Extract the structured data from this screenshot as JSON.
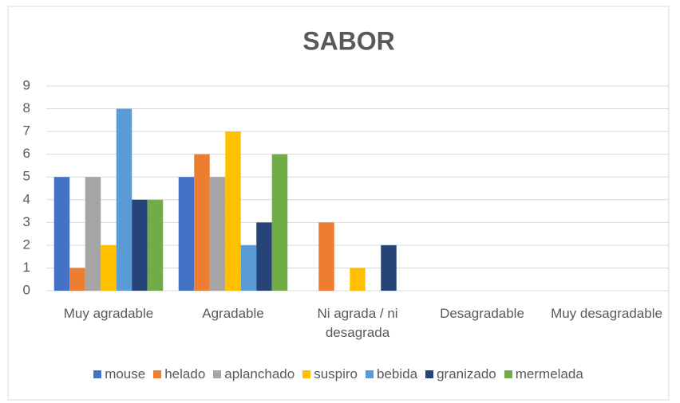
{
  "chart_data": {
    "type": "bar",
    "title": "SABOR",
    "categories": [
      "Muy agradable",
      "Agradable",
      "Ni agrada / ni desagrada",
      "Desagradable",
      "Muy desagradable"
    ],
    "series": [
      {
        "name": "mouse",
        "color": "#4472c4",
        "values": [
          5,
          5,
          0,
          0,
          0
        ]
      },
      {
        "name": "helado",
        "color": "#ed7d31",
        "values": [
          1,
          6,
          3,
          0,
          0
        ]
      },
      {
        "name": "aplanchado",
        "color": "#a5a5a5",
        "values": [
          5,
          5,
          0,
          0,
          0
        ]
      },
      {
        "name": "suspiro",
        "color": "#ffc000",
        "values": [
          2,
          7,
          1,
          0,
          0
        ]
      },
      {
        "name": "bebida",
        "color": "#5b9bd5",
        "values": [
          8,
          2,
          0,
          0,
          0
        ]
      },
      {
        "name": "granizado",
        "color": "#264478",
        "values": [
          4,
          3,
          2,
          0,
          0
        ]
      },
      {
        "name": "mermelada",
        "color": "#70ad47",
        "values": [
          4,
          6,
          0,
          0,
          0
        ]
      }
    ],
    "ylim": [
      0,
      9
    ],
    "yticks": [
      0,
      1,
      2,
      3,
      4,
      5,
      6,
      7,
      8,
      9
    ],
    "grid": true,
    "legend": "bottom"
  }
}
